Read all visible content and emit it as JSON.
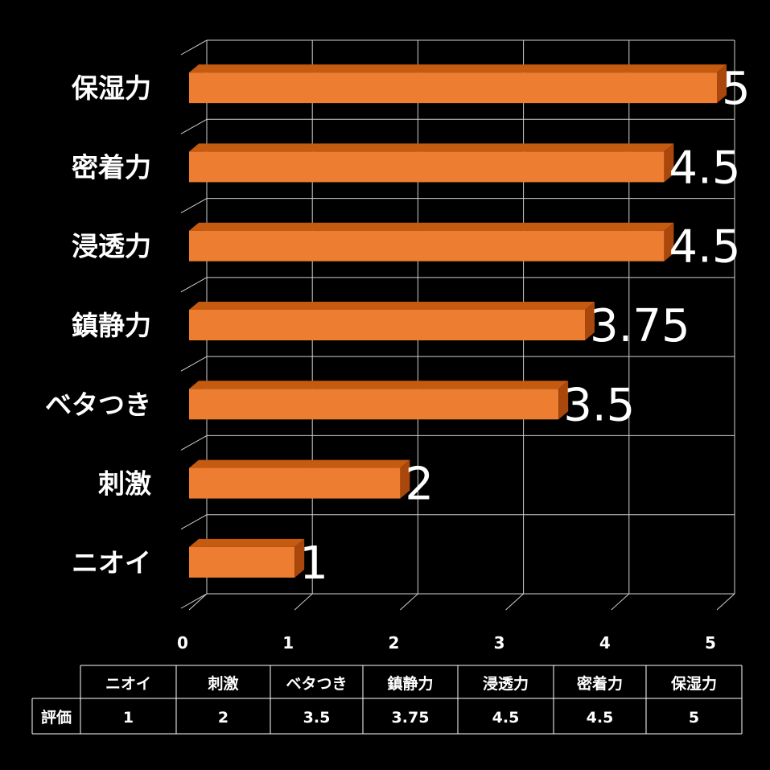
{
  "chart_data": {
    "type": "bar",
    "orientation": "horizontal",
    "categories": [
      "保湿力",
      "密着力",
      "浸透力",
      "鎮静力",
      "ベタつき",
      "刺激",
      "ニオイ"
    ],
    "values": [
      5,
      4.5,
      4.5,
      3.75,
      3.5,
      2,
      1
    ],
    "value_labels": [
      "5",
      "4.5",
      "4.5",
      "3.75",
      "3.5",
      "2",
      "1"
    ],
    "xlim": [
      0,
      5
    ],
    "x_ticks": [
      "0",
      "1",
      "2",
      "3",
      "4",
      "5"
    ],
    "grid": true,
    "bar_color": "#ED7D31",
    "data_table": {
      "row_header": "評価",
      "columns": [
        "ニオイ",
        "刺激",
        "ベタつき",
        "鎮静力",
        "浸透力",
        "密着力",
        "保湿力"
      ],
      "values": [
        "1",
        "2",
        "3.5",
        "3.75",
        "4.5",
        "4.5",
        "5"
      ]
    }
  }
}
